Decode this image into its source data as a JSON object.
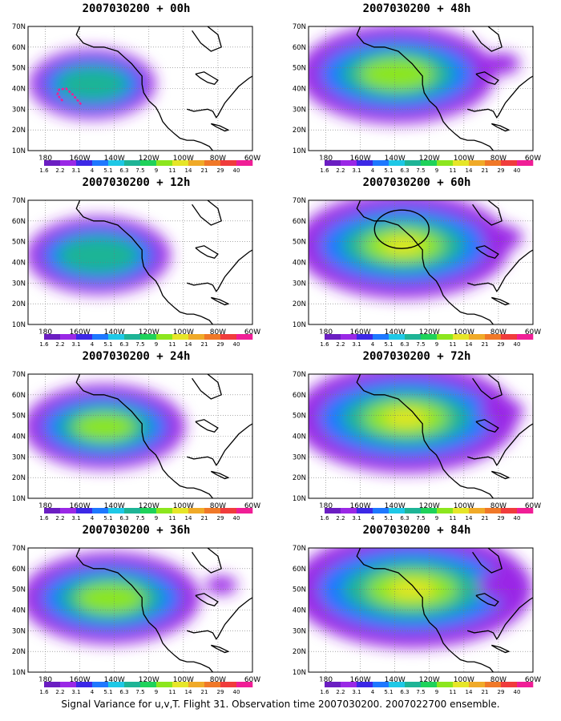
{
  "panels": [
    {
      "title": "2007030200 + 00h",
      "col": 0,
      "row": 0,
      "intensity": 0.35,
      "circle": false,
      "track": true
    },
    {
      "title": "2007030200 + 48h",
      "col": 1,
      "row": 0,
      "intensity": 0.75,
      "circle": false,
      "track": false
    },
    {
      "title": "2007030200 + 12h",
      "col": 0,
      "row": 1,
      "intensity": 0.45,
      "circle": false,
      "track": false
    },
    {
      "title": "2007030200 + 60h",
      "col": 1,
      "row": 1,
      "intensity": 0.85,
      "circle": true,
      "track": false
    },
    {
      "title": "2007030200 + 24h",
      "col": 0,
      "row": 2,
      "intensity": 0.55,
      "circle": false,
      "track": false
    },
    {
      "title": "2007030200 + 72h",
      "col": 1,
      "row": 2,
      "intensity": 0.9,
      "circle": false,
      "track": false
    },
    {
      "title": "2007030200 + 36h",
      "col": 0,
      "row": 3,
      "intensity": 0.65,
      "circle": false,
      "track": false
    },
    {
      "title": "2007030200 + 84h",
      "col": 1,
      "row": 3,
      "intensity": 1.0,
      "circle": false,
      "track": false
    }
  ],
  "lat_labels": [
    "10N",
    "20N",
    "30N",
    "40N",
    "50N",
    "60N",
    "70N"
  ],
  "lon_labels": [
    "180",
    "160W",
    "140W",
    "120W",
    "100W",
    "80W",
    "60W"
  ],
  "colorbar": {
    "labels": [
      "1.6",
      "2.2",
      "3.1",
      "4",
      "5.1",
      "6.3",
      "7.5",
      "9",
      "11",
      "14",
      "21",
      "29",
      "40"
    ],
    "colors": [
      "#ffffff",
      "#6b1ec2",
      "#9a28e6",
      "#3c28e6",
      "#1e78ff",
      "#1ec8e6",
      "#1eb496",
      "#1ed25a",
      "#8ce61e",
      "#e6e628",
      "#f0aa28",
      "#f07828",
      "#f03c3c",
      "#f01e96"
    ]
  },
  "caption": "Signal Variance for u,v,T. Flight 31. Observation time 2007030200. 2007022700 ensemble."
}
